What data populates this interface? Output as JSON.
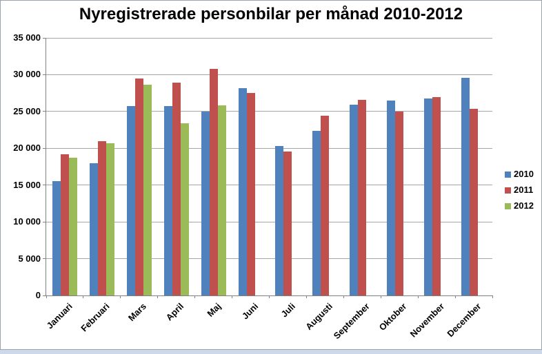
{
  "chart_data": {
    "type": "bar",
    "title": "Nyregistrerade personbilar per månad 2010-2012",
    "categories": [
      "Januari",
      "Februari",
      "Mars",
      "April",
      "Maj",
      "Juni",
      "Juli",
      "Augusti",
      "September",
      "Oktober",
      "November",
      "December"
    ],
    "series": [
      {
        "name": "2010",
        "color": "#4F81BD",
        "values": [
          15500,
          18000,
          25700,
          25700,
          25000,
          28200,
          20300,
          22400,
          25900,
          26500,
          26800,
          29600
        ]
      },
      {
        "name": "2011",
        "color": "#C0504D",
        "values": [
          19200,
          21000,
          29500,
          28900,
          30800,
          27500,
          19600,
          24400,
          26600,
          25000,
          27000,
          25400
        ]
      },
      {
        "name": "2012",
        "color": "#9BBB59",
        "values": [
          18700,
          20700,
          28600,
          23400,
          25800,
          null,
          null,
          null,
          null,
          null,
          null,
          null
        ]
      }
    ],
    "ylim": [
      0,
      35000
    ],
    "ytick_step": 5000,
    "yticks": [
      "0",
      "5 000",
      "10 000",
      "15 000",
      "20 000",
      "25 000",
      "30 000",
      "35 000"
    ],
    "grid": true,
    "legend_position": "right",
    "xlabel": "",
    "ylabel": ""
  },
  "palette": {
    "gridline": "#A6A6A6",
    "axis": "#808080",
    "background": "#FFFFFF",
    "frame_border": "#9AA3AD",
    "bottom_strip": "#CDD9EA"
  }
}
